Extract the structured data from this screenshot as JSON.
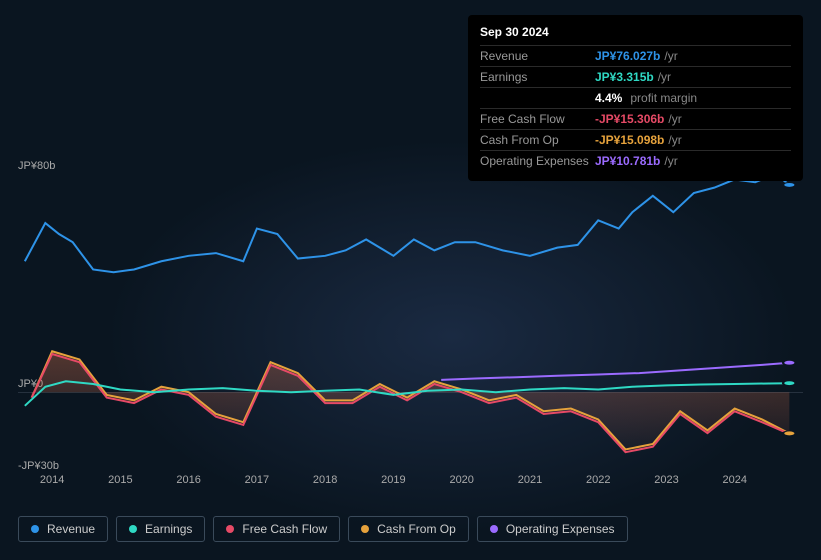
{
  "tooltip": {
    "title": "Sep 30 2024",
    "rows": [
      {
        "label": "Revenue",
        "value": "JP¥76.027b",
        "color": "#2e93e8",
        "suffix": "/yr"
      },
      {
        "label": "Earnings",
        "value": "JP¥3.315b",
        "color": "#2fd9c4",
        "suffix": "/yr"
      },
      {
        "label": "",
        "value": "4.4%",
        "color": "#ffffff",
        "suffix": "",
        "extra": "profit margin"
      },
      {
        "label": "Free Cash Flow",
        "value": "-JP¥15.306b",
        "color": "#e64a66",
        "suffix": "/yr"
      },
      {
        "label": "Cash From Op",
        "value": "-JP¥15.098b",
        "color": "#e6a23c",
        "suffix": "/yr"
      },
      {
        "label": "Operating Expenses",
        "value": "JP¥10.781b",
        "color": "#9b6bff",
        "suffix": "/yr"
      }
    ]
  },
  "chart": {
    "y_axis": {
      "min": -30,
      "max": 80,
      "ticks": [
        {
          "v": 80,
          "label": "JP¥80b"
        },
        {
          "v": 0,
          "label": "JP¥0"
        },
        {
          "v": -30,
          "label": "-JP¥30b"
        }
      ],
      "zero_line_color": "#7a8799"
    },
    "x_axis": {
      "start": 2013.5,
      "end": 2025.0,
      "ticks": [
        2014,
        2015,
        2016,
        2017,
        2018,
        2019,
        2020,
        2021,
        2022,
        2023,
        2024
      ]
    },
    "colors": {
      "revenue": "#2e93e8",
      "earnings": "#2fd9c4",
      "fcf": "#e64a66",
      "cfo": "#e6a23c",
      "opex": "#9b6bff"
    },
    "series": {
      "revenue": [
        {
          "x": 2013.6,
          "y": 48
        },
        {
          "x": 2013.9,
          "y": 62
        },
        {
          "x": 2014.1,
          "y": 58
        },
        {
          "x": 2014.3,
          "y": 55
        },
        {
          "x": 2014.6,
          "y": 45
        },
        {
          "x": 2014.9,
          "y": 44
        },
        {
          "x": 2015.2,
          "y": 45
        },
        {
          "x": 2015.6,
          "y": 48
        },
        {
          "x": 2016.0,
          "y": 50
        },
        {
          "x": 2016.4,
          "y": 51
        },
        {
          "x": 2016.8,
          "y": 48
        },
        {
          "x": 2017.0,
          "y": 60
        },
        {
          "x": 2017.3,
          "y": 58
        },
        {
          "x": 2017.6,
          "y": 49
        },
        {
          "x": 2018.0,
          "y": 50
        },
        {
          "x": 2018.3,
          "y": 52
        },
        {
          "x": 2018.6,
          "y": 56
        },
        {
          "x": 2019.0,
          "y": 50
        },
        {
          "x": 2019.3,
          "y": 56
        },
        {
          "x": 2019.6,
          "y": 52
        },
        {
          "x": 2019.9,
          "y": 55
        },
        {
          "x": 2020.2,
          "y": 55
        },
        {
          "x": 2020.6,
          "y": 52
        },
        {
          "x": 2021.0,
          "y": 50
        },
        {
          "x": 2021.4,
          "y": 53
        },
        {
          "x": 2021.7,
          "y": 54
        },
        {
          "x": 2022.0,
          "y": 63
        },
        {
          "x": 2022.3,
          "y": 60
        },
        {
          "x": 2022.5,
          "y": 66
        },
        {
          "x": 2022.8,
          "y": 72
        },
        {
          "x": 2023.1,
          "y": 66
        },
        {
          "x": 2023.4,
          "y": 73
        },
        {
          "x": 2023.7,
          "y": 75
        },
        {
          "x": 2024.0,
          "y": 78
        },
        {
          "x": 2024.3,
          "y": 77
        },
        {
          "x": 2024.6,
          "y": 80
        },
        {
          "x": 2024.8,
          "y": 76
        }
      ],
      "earnings": [
        {
          "x": 2013.6,
          "y": -5
        },
        {
          "x": 2013.9,
          "y": 2
        },
        {
          "x": 2014.2,
          "y": 4
        },
        {
          "x": 2014.6,
          "y": 3
        },
        {
          "x": 2015.0,
          "y": 1
        },
        {
          "x": 2015.5,
          "y": 0
        },
        {
          "x": 2016.0,
          "y": 1
        },
        {
          "x": 2016.5,
          "y": 1.5
        },
        {
          "x": 2017.0,
          "y": 0.5
        },
        {
          "x": 2017.5,
          "y": 0
        },
        {
          "x": 2018.0,
          "y": 0.5
        },
        {
          "x": 2018.5,
          "y": 1
        },
        {
          "x": 2019.0,
          "y": -1
        },
        {
          "x": 2019.5,
          "y": 0.5
        },
        {
          "x": 2020.0,
          "y": 1
        },
        {
          "x": 2020.5,
          "y": 0
        },
        {
          "x": 2021.0,
          "y": 1
        },
        {
          "x": 2021.5,
          "y": 1.5
        },
        {
          "x": 2022.0,
          "y": 1
        },
        {
          "x": 2022.5,
          "y": 2
        },
        {
          "x": 2023.0,
          "y": 2.5
        },
        {
          "x": 2023.5,
          "y": 2.8
        },
        {
          "x": 2024.0,
          "y": 3
        },
        {
          "x": 2024.5,
          "y": 3.2
        },
        {
          "x": 2024.8,
          "y": 3.3
        }
      ],
      "fcf": [
        {
          "x": 2013.7,
          "y": -2
        },
        {
          "x": 2014.0,
          "y": 14
        },
        {
          "x": 2014.4,
          "y": 11
        },
        {
          "x": 2014.8,
          "y": -2
        },
        {
          "x": 2015.2,
          "y": -4
        },
        {
          "x": 2015.6,
          "y": 1
        },
        {
          "x": 2016.0,
          "y": -1
        },
        {
          "x": 2016.4,
          "y": -9
        },
        {
          "x": 2016.8,
          "y": -12
        },
        {
          "x": 2017.2,
          "y": 10
        },
        {
          "x": 2017.6,
          "y": 6
        },
        {
          "x": 2018.0,
          "y": -4
        },
        {
          "x": 2018.4,
          "y": -4
        },
        {
          "x": 2018.8,
          "y": 2
        },
        {
          "x": 2019.2,
          "y": -3
        },
        {
          "x": 2019.6,
          "y": 3
        },
        {
          "x": 2020.0,
          "y": 0
        },
        {
          "x": 2020.4,
          "y": -4
        },
        {
          "x": 2020.8,
          "y": -2
        },
        {
          "x": 2021.2,
          "y": -8
        },
        {
          "x": 2021.6,
          "y": -7
        },
        {
          "x": 2022.0,
          "y": -11
        },
        {
          "x": 2022.4,
          "y": -22
        },
        {
          "x": 2022.8,
          "y": -20
        },
        {
          "x": 2023.2,
          "y": -8
        },
        {
          "x": 2023.6,
          "y": -15
        },
        {
          "x": 2024.0,
          "y": -7
        },
        {
          "x": 2024.4,
          "y": -11
        },
        {
          "x": 2024.8,
          "y": -15.3
        }
      ],
      "cfo": [
        {
          "x": 2013.7,
          "y": -2
        },
        {
          "x": 2014.0,
          "y": 15
        },
        {
          "x": 2014.4,
          "y": 12
        },
        {
          "x": 2014.8,
          "y": -1
        },
        {
          "x": 2015.2,
          "y": -3
        },
        {
          "x": 2015.6,
          "y": 2
        },
        {
          "x": 2016.0,
          "y": 0
        },
        {
          "x": 2016.4,
          "y": -8
        },
        {
          "x": 2016.8,
          "y": -11
        },
        {
          "x": 2017.2,
          "y": 11
        },
        {
          "x": 2017.6,
          "y": 7
        },
        {
          "x": 2018.0,
          "y": -3
        },
        {
          "x": 2018.4,
          "y": -3
        },
        {
          "x": 2018.8,
          "y": 3
        },
        {
          "x": 2019.2,
          "y": -2
        },
        {
          "x": 2019.6,
          "y": 4
        },
        {
          "x": 2020.0,
          "y": 1
        },
        {
          "x": 2020.4,
          "y": -3
        },
        {
          "x": 2020.8,
          "y": -1
        },
        {
          "x": 2021.2,
          "y": -7
        },
        {
          "x": 2021.6,
          "y": -6
        },
        {
          "x": 2022.0,
          "y": -10
        },
        {
          "x": 2022.4,
          "y": -21
        },
        {
          "x": 2022.8,
          "y": -19
        },
        {
          "x": 2023.2,
          "y": -7
        },
        {
          "x": 2023.6,
          "y": -14
        },
        {
          "x": 2024.0,
          "y": -6
        },
        {
          "x": 2024.4,
          "y": -10
        },
        {
          "x": 2024.8,
          "y": -15.1
        }
      ],
      "opex": [
        {
          "x": 2019.7,
          "y": 4.5
        },
        {
          "x": 2020.2,
          "y": 5
        },
        {
          "x": 2020.8,
          "y": 5.5
        },
        {
          "x": 2021.4,
          "y": 6
        },
        {
          "x": 2022.0,
          "y": 6.5
        },
        {
          "x": 2022.6,
          "y": 7
        },
        {
          "x": 2023.2,
          "y": 8
        },
        {
          "x": 2023.8,
          "y": 9
        },
        {
          "x": 2024.4,
          "y": 10
        },
        {
          "x": 2024.8,
          "y": 10.8
        }
      ]
    },
    "fill_series": [
      "fcf",
      "cfo"
    ],
    "end_markers": [
      "revenue",
      "earnings",
      "fcf",
      "cfo",
      "opex"
    ]
  },
  "legend": {
    "items": [
      {
        "key": "revenue",
        "label": "Revenue"
      },
      {
        "key": "earnings",
        "label": "Earnings"
      },
      {
        "key": "fcf",
        "label": "Free Cash Flow"
      },
      {
        "key": "cfo",
        "label": "Cash From Op"
      },
      {
        "key": "opex",
        "label": "Operating Expenses"
      }
    ]
  }
}
